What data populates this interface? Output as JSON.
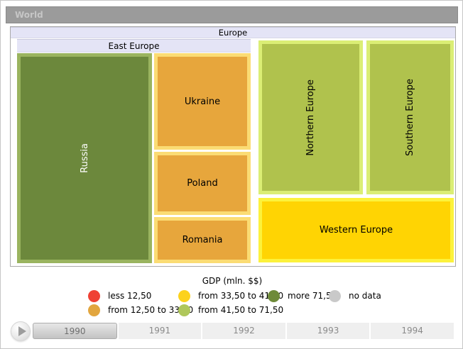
{
  "breadcrumb": {
    "label": "World"
  },
  "treemap": {
    "root_label": "Europe",
    "group_label": "East Europe",
    "header_bg": "#E4E4F6",
    "cells": {
      "russia": {
        "label": "Russia",
        "fill": "#6C883C",
        "border": "#9AB45F",
        "text": "#FFFFFF"
      },
      "ukraine": {
        "label": "Ukraine",
        "fill": "#E7A63C",
        "border": "#FBDC74",
        "text": "#000000"
      },
      "poland": {
        "label": "Poland",
        "fill": "#E7A63C",
        "border": "#FBDC74",
        "text": "#000000"
      },
      "romania": {
        "label": "Romania",
        "fill": "#E7A63C",
        "border": "#FBDC74",
        "text": "#000000"
      },
      "northern_europe": {
        "label": "Northern Europe",
        "fill": "#B0C24D",
        "border": "#DBEE75",
        "text": "#000000"
      },
      "southern_europe": {
        "label": "Southern Europe",
        "fill": "#B0C24D",
        "border": "#DBEE75",
        "text": "#000000"
      },
      "western_europe": {
        "label": "Western Europe",
        "fill": "#FFD403",
        "border": "#FCF23C",
        "text": "#000000"
      }
    }
  },
  "legend": {
    "title": "GDP (mln. $$)",
    "items": [
      {
        "label": "less 12,50",
        "color": "#EF4134"
      },
      {
        "label": "from 12,50 to 33,50",
        "color": "#E2A63F"
      },
      {
        "label": "from 33,50 to 41,50",
        "color": "#FCD21D"
      },
      {
        "label": "from 41,50 to 71,50",
        "color": "#AFC75B"
      },
      {
        "label": "more 71,50",
        "color": "#6E8A39"
      },
      {
        "label": "no data",
        "color": "#C9C9C9"
      }
    ]
  },
  "timeline": {
    "years": [
      "1990",
      "1991",
      "1992",
      "1993",
      "1994"
    ],
    "selected_year": "1990"
  },
  "chart_data": {
    "type": "treemap",
    "title": "GDP (mln. $$)",
    "root": "World",
    "current_level": "Europe",
    "selected_year": "1990",
    "timeline_years": [
      "1990",
      "1991",
      "1992",
      "1993",
      "1994"
    ],
    "legend_bins": [
      {
        "bin": "less 12,50",
        "color": "#EF4134"
      },
      {
        "bin": "from 12,50 to 33,50",
        "color": "#E2A63F"
      },
      {
        "bin": "from 33,50 to 41,50",
        "color": "#FCD21D"
      },
      {
        "bin": "from 41,50 to 71,50",
        "color": "#AFC75B"
      },
      {
        "bin": "more 71,50",
        "color": "#6E8A39"
      },
      {
        "bin": "no data",
        "color": "#C9C9C9"
      }
    ],
    "nodes": [
      {
        "name": "Europe",
        "children": [
          {
            "name": "East Europe",
            "children": [
              {
                "name": "Russia",
                "gdp_bin": "more 71,50",
                "approx_area_share_pct": 31
              },
              {
                "name": "Ukraine",
                "gdp_bin": "from 12,50 to 33,50",
                "approx_area_share_pct": 10
              },
              {
                "name": "Poland",
                "gdp_bin": "from 12,50 to 33,50",
                "approx_area_share_pct": 7
              },
              {
                "name": "Romania",
                "gdp_bin": "from 12,50 to 33,50",
                "approx_area_share_pct": 5
              }
            ]
          },
          {
            "name": "Northern Europe",
            "gdp_bin": "from 41,50 to 71,50",
            "approx_area_share_pct": 18
          },
          {
            "name": "Southern Europe",
            "gdp_bin": "from 41,50 to 71,50",
            "approx_area_share_pct": 15
          },
          {
            "name": "Western Europe",
            "gdp_bin": "from 33,50 to 41,50",
            "approx_area_share_pct": 14
          }
        ]
      }
    ]
  }
}
